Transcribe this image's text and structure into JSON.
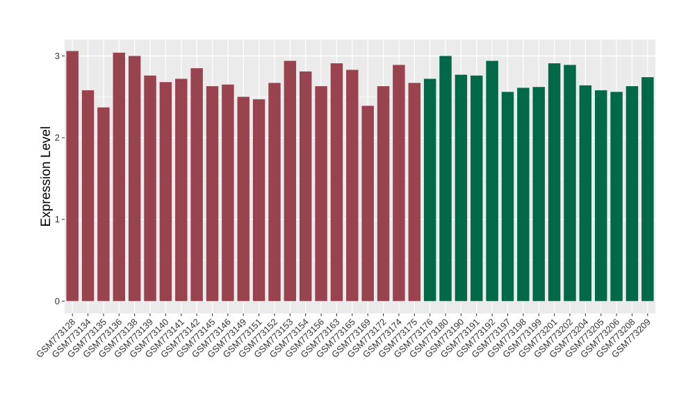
{
  "chart_data": {
    "type": "bar",
    "title": "",
    "xlabel": "",
    "ylabel": "Expression Level",
    "ylim": [
      -0.15,
      3.2
    ],
    "yticks": [
      0,
      1,
      2,
      3
    ],
    "grid": true,
    "legend": "none",
    "categories": [
      "GSM773128",
      "GSM773134",
      "GSM773135",
      "GSM773136",
      "GSM773138",
      "GSM773139",
      "GSM773140",
      "GSM773141",
      "GSM773142",
      "GSM773145",
      "GSM773146",
      "GSM773149",
      "GSM773151",
      "GSM773152",
      "GSM773153",
      "GSM773154",
      "GSM773156",
      "GSM773163",
      "GSM773165",
      "GSM773169",
      "GSM773172",
      "GSM773174",
      "GSM773175",
      "GSM773176",
      "GSM773180",
      "GSM773190",
      "GSM773191",
      "GSM773192",
      "GSM773197",
      "GSM773198",
      "GSM773199",
      "GSM773201",
      "GSM773202",
      "GSM773204",
      "GSM773205",
      "GSM773206",
      "GSM773208",
      "GSM773209"
    ],
    "values": [
      3.06,
      2.58,
      2.37,
      3.04,
      3.0,
      2.76,
      2.68,
      2.72,
      2.85,
      2.63,
      2.65,
      2.5,
      2.47,
      2.67,
      2.94,
      2.81,
      2.63,
      2.91,
      2.83,
      2.39,
      2.63,
      2.89,
      2.67,
      2.72,
      3.0,
      2.77,
      2.76,
      2.94,
      2.56,
      2.61,
      2.62,
      2.91,
      2.89,
      2.64,
      2.58,
      2.56,
      2.63,
      2.74
    ],
    "groups": [
      "a",
      "a",
      "a",
      "a",
      "a",
      "a",
      "a",
      "a",
      "a",
      "a",
      "a",
      "a",
      "a",
      "a",
      "a",
      "a",
      "a",
      "a",
      "a",
      "a",
      "a",
      "a",
      "a",
      "b",
      "b",
      "b",
      "b",
      "b",
      "b",
      "b",
      "b",
      "b",
      "b",
      "b",
      "b",
      "b",
      "b",
      "b"
    ],
    "group_colors": {
      "a": "#99434f",
      "b": "#016848"
    },
    "panel_background": "#ebebeb",
    "grid_color": "#ffffff"
  }
}
